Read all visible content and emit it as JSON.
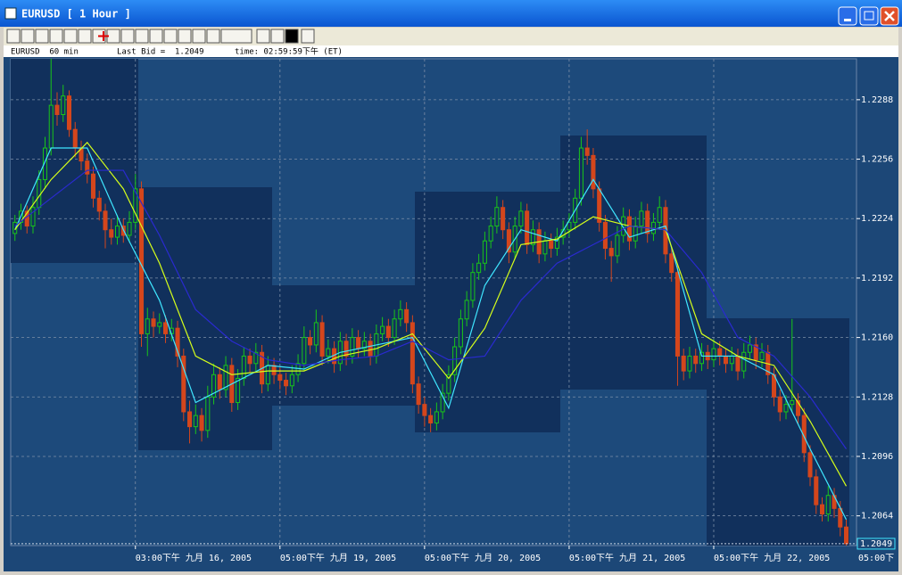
{
  "window": {
    "title": "EURUSD  [ 1 Hour ]"
  },
  "header": {
    "symbol_period": "EURUSD  60 min",
    "last_bid_label": "Last Bid =",
    "time": "time: 02:59:59下午 (ET)"
  },
  "chart_data": {
    "type": "candlestick",
    "last_bid": 1.2049,
    "ylim": [
      1.2048,
      1.231
    ],
    "yticks": [
      1.2064,
      1.2096,
      1.2128,
      {
        "value": 1.216,
        "label": "1.2160"
      },
      1.2192,
      1.2224,
      1.2256,
      1.2288
    ],
    "xlim": [
      -0.7,
      139.7
    ],
    "xticks": [
      {
        "value": 20,
        "label": "03:00下午 九月 16, 2005"
      },
      {
        "value": 44,
        "label": "05:00下午 九月 19, 2005"
      },
      {
        "value": 68,
        "label": "05:00下午 九月 20, 2005"
      },
      {
        "value": 92,
        "label": "05:00下午 九月 21, 2005"
      },
      {
        "value": 116,
        "label": "05:00下午 九月 22, 2005"
      },
      {
        "value": 140,
        "label": "05:00下"
      }
    ],
    "grid": true,
    "up_color": "#19c519",
    "down_color": "#d4461c",
    "candles": [
      [
        1.2216,
        1.2226,
        1.2212,
        1.2222
      ],
      [
        1.2222,
        1.2232,
        1.2218,
        1.2228
      ],
      [
        1.2228,
        1.2231,
        1.2216,
        1.222
      ],
      [
        1.222,
        1.2236,
        1.2216,
        1.223
      ],
      [
        1.223,
        1.225,
        1.2226,
        1.2245
      ],
      [
        1.2245,
        1.2268,
        1.224,
        1.2262
      ],
      [
        1.2262,
        1.231,
        1.2258,
        1.2285
      ],
      [
        1.2285,
        1.2292,
        1.2274,
        1.228
      ],
      [
        1.228,
        1.2296,
        1.2276,
        1.229
      ],
      [
        1.229,
        1.2293,
        1.2268,
        1.2272
      ],
      [
        1.2272,
        1.2276,
        1.2257,
        1.2262
      ],
      [
        1.2262,
        1.2266,
        1.225,
        1.2255
      ],
      [
        1.2255,
        1.2259,
        1.2243,
        1.2248
      ],
      [
        1.2248,
        1.2252,
        1.223,
        1.2235
      ],
      [
        1.2235,
        1.2239,
        1.2223,
        1.2228
      ],
      [
        1.2228,
        1.2232,
        1.2208,
        1.2218
      ],
      [
        1.2218,
        1.2224,
        1.221,
        1.2214
      ],
      [
        1.2214,
        1.2226,
        1.221,
        1.222
      ],
      [
        1.222,
        1.2224,
        1.2211,
        1.2215
      ],
      [
        1.2215,
        1.2228,
        1.2211,
        1.2222
      ],
      [
        1.2222,
        1.2248,
        1.2218,
        1.224
      ],
      [
        1.224,
        1.2244,
        1.2155,
        1.2162
      ],
      [
        1.2162,
        1.2176,
        1.215,
        1.217
      ],
      [
        1.217,
        1.2174,
        1.216,
        1.2166
      ],
      [
        1.2166,
        1.2173,
        1.2162,
        1.2168
      ],
      [
        1.2168,
        1.2172,
        1.2157,
        1.2162
      ],
      [
        1.2162,
        1.217,
        1.2158,
        1.2165
      ],
      [
        1.2165,
        1.2169,
        1.2144,
        1.215
      ],
      [
        1.215,
        1.2154,
        1.2115,
        1.212
      ],
      [
        1.212,
        1.2126,
        1.2103,
        1.2112
      ],
      [
        1.2112,
        1.2124,
        1.2108,
        1.2118
      ],
      [
        1.2118,
        1.2122,
        1.2104,
        1.211
      ],
      [
        1.211,
        1.2134,
        1.2106,
        1.2128
      ],
      [
        1.2128,
        1.2146,
        1.2124,
        1.214
      ],
      [
        1.214,
        1.2144,
        1.2127,
        1.2132
      ],
      [
        1.2132,
        1.215,
        1.2128,
        1.2145
      ],
      [
        1.2145,
        1.2149,
        1.212,
        1.2125
      ],
      [
        1.2125,
        1.2143,
        1.2121,
        1.2138
      ],
      [
        1.2138,
        1.2155,
        1.2134,
        1.215
      ],
      [
        1.215,
        1.2154,
        1.2141,
        1.2146
      ],
      [
        1.2146,
        1.2157,
        1.2142,
        1.2152
      ],
      [
        1.2152,
        1.2156,
        1.213,
        1.2135
      ],
      [
        1.2135,
        1.215,
        1.2131,
        1.2145
      ],
      [
        1.2145,
        1.2149,
        1.2135,
        1.214
      ],
      [
        1.214,
        1.2144,
        1.2132,
        1.2137
      ],
      [
        1.2137,
        1.2141,
        1.2129,
        1.2134
      ],
      [
        1.2134,
        1.2145,
        1.213,
        1.214
      ],
      [
        1.214,
        1.2151,
        1.2136,
        1.2146
      ],
      [
        1.2146,
        1.2166,
        1.2142,
        1.216
      ],
      [
        1.216,
        1.2164,
        1.2151,
        1.2156
      ],
      [
        1.2156,
        1.2175,
        1.2152,
        1.2168
      ],
      [
        1.2168,
        1.2172,
        1.2145,
        1.215
      ],
      [
        1.215,
        1.2159,
        1.2146,
        1.2154
      ],
      [
        1.2154,
        1.2158,
        1.2141,
        1.2146
      ],
      [
        1.2146,
        1.2163,
        1.2142,
        1.2158
      ],
      [
        1.2158,
        1.2162,
        1.2145,
        1.215
      ],
      [
        1.215,
        1.2165,
        1.2146,
        1.216
      ],
      [
        1.216,
        1.2164,
        1.2149,
        1.2154
      ],
      [
        1.2154,
        1.2163,
        1.215,
        1.2158
      ],
      [
        1.2158,
        1.2162,
        1.2145,
        1.215
      ],
      [
        1.215,
        1.2167,
        1.2146,
        1.2162
      ],
      [
        1.2162,
        1.2171,
        1.2158,
        1.2166
      ],
      [
        1.2166,
        1.217,
        1.2155,
        1.216
      ],
      [
        1.216,
        1.2175,
        1.2156,
        1.217
      ],
      [
        1.217,
        1.218,
        1.2166,
        1.2175
      ],
      [
        1.2175,
        1.2179,
        1.2163,
        1.2168
      ],
      [
        1.2168,
        1.2172,
        1.213,
        1.2135
      ],
      [
        1.2135,
        1.2139,
        1.2119,
        1.2124
      ],
      [
        1.2124,
        1.2128,
        1.2112,
        1.2118
      ],
      [
        1.2118,
        1.2122,
        1.2109,
        1.2114
      ],
      [
        1.2114,
        1.2125,
        1.211,
        1.212
      ],
      [
        1.212,
        1.2135,
        1.2116,
        1.213
      ],
      [
        1.213,
        1.2145,
        1.2126,
        1.214
      ],
      [
        1.214,
        1.216,
        1.2136,
        1.2155
      ],
      [
        1.2155,
        1.2175,
        1.2151,
        1.217
      ],
      [
        1.217,
        1.2185,
        1.2166,
        1.218
      ],
      [
        1.218,
        1.22,
        1.2176,
        1.2195
      ],
      [
        1.2195,
        1.2205,
        1.2191,
        1.22
      ],
      [
        1.22,
        1.2217,
        1.2196,
        1.2212
      ],
      [
        1.2212,
        1.2225,
        1.2208,
        1.222
      ],
      [
        1.222,
        1.2236,
        1.2216,
        1.223
      ],
      [
        1.223,
        1.2234,
        1.2213,
        1.2218
      ],
      [
        1.2218,
        1.2222,
        1.22,
        1.2206
      ],
      [
        1.2206,
        1.2225,
        1.2202,
        1.222
      ],
      [
        1.222,
        1.2233,
        1.2216,
        1.2228
      ],
      [
        1.2228,
        1.2232,
        1.2205,
        1.221
      ],
      [
        1.221,
        1.2223,
        1.2206,
        1.2218
      ],
      [
        1.2218,
        1.2222,
        1.22,
        1.2205
      ],
      [
        1.2205,
        1.2217,
        1.2201,
        1.2212
      ],
      [
        1.2212,
        1.2216,
        1.2203,
        1.2208
      ],
      [
        1.2208,
        1.2219,
        1.2204,
        1.2214
      ],
      [
        1.2214,
        1.2223,
        1.221,
        1.2218
      ],
      [
        1.2218,
        1.2227,
        1.2214,
        1.2222
      ],
      [
        1.2222,
        1.224,
        1.2218,
        1.2235
      ],
      [
        1.2235,
        1.2268,
        1.2231,
        1.2262
      ],
      [
        1.2262,
        1.2272,
        1.2253,
        1.2258
      ],
      [
        1.2258,
        1.2262,
        1.2235,
        1.224
      ],
      [
        1.224,
        1.2244,
        1.2217,
        1.2222
      ],
      [
        1.2222,
        1.2226,
        1.2202,
        1.2208
      ],
      [
        1.2208,
        1.2212,
        1.219,
        1.2204
      ],
      [
        1.2204,
        1.222,
        1.22,
        1.2215
      ],
      [
        1.2215,
        1.223,
        1.2211,
        1.2225
      ],
      [
        1.2225,
        1.2229,
        1.2207,
        1.2212
      ],
      [
        1.2212,
        1.2225,
        1.2208,
        1.222
      ],
      [
        1.222,
        1.2233,
        1.2216,
        1.2228
      ],
      [
        1.2228,
        1.2232,
        1.2211,
        1.2216
      ],
      [
        1.2216,
        1.2227,
        1.2212,
        1.2222
      ],
      [
        1.2222,
        1.2236,
        1.2218,
        1.223
      ],
      [
        1.223,
        1.2234,
        1.22,
        1.2205
      ],
      [
        1.2205,
        1.2209,
        1.219,
        1.2195
      ],
      [
        1.2195,
        1.2199,
        1.2134,
        1.215
      ],
      [
        1.215,
        1.2154,
        1.2137,
        1.2142
      ],
      [
        1.2142,
        1.2155,
        1.2138,
        1.215
      ],
      [
        1.215,
        1.2154,
        1.2141,
        1.2146
      ],
      [
        1.2146,
        1.2157,
        1.2142,
        1.2152
      ],
      [
        1.2152,
        1.2156,
        1.2143,
        1.2148
      ],
      [
        1.2148,
        1.2159,
        1.2144,
        1.2154
      ],
      [
        1.2154,
        1.2158,
        1.2145,
        1.215
      ],
      [
        1.215,
        1.2154,
        1.2141,
        1.2146
      ],
      [
        1.2146,
        1.2155,
        1.2142,
        1.215
      ],
      [
        1.215,
        1.2154,
        1.2137,
        1.2142
      ],
      [
        1.2142,
        1.2157,
        1.2138,
        1.2152
      ],
      [
        1.2152,
        1.2161,
        1.2148,
        1.2156
      ],
      [
        1.2156,
        1.216,
        1.2143,
        1.2148
      ],
      [
        1.2148,
        1.2157,
        1.2144,
        1.2152
      ],
      [
        1.2152,
        1.2156,
        1.2135,
        1.214
      ],
      [
        1.214,
        1.2144,
        1.2123,
        1.2128
      ],
      [
        1.2128,
        1.2132,
        1.2115,
        1.212
      ],
      [
        1.212,
        1.2129,
        1.2116,
        1.2124
      ],
      [
        1.2124,
        1.217,
        1.212,
        1.2126
      ],
      [
        1.2126,
        1.213,
        1.2113,
        1.2118
      ],
      [
        1.2118,
        1.2122,
        1.2093,
        1.2098
      ],
      [
        1.2098,
        1.2102,
        1.208,
        1.2085
      ],
      [
        1.2085,
        1.2089,
        1.2065,
        1.207
      ],
      [
        1.207,
        1.2074,
        1.2061,
        1.2065
      ],
      [
        1.2065,
        1.208,
        1.2061,
        1.2075
      ],
      [
        1.2075,
        1.2079,
        1.2063,
        1.2068
      ],
      [
        1.2068,
        1.2072,
        1.2053,
        1.2058
      ],
      [
        1.2058,
        1.2062,
        1.2048,
        1.2049
      ]
    ],
    "moving_averages": [
      {
        "color": "#3fe6ff",
        "x": [
          0,
          6,
          12,
          18,
          24,
          30,
          36,
          42,
          48,
          54,
          60,
          66,
          72,
          78,
          84,
          90,
          96,
          102,
          108,
          114,
          120,
          126,
          132,
          138
        ],
        "values": [
          1.2218,
          1.2262,
          1.2262,
          1.2218,
          1.218,
          1.2125,
          1.2135,
          1.2145,
          1.2143,
          1.2152,
          1.2156,
          1.216,
          1.2122,
          1.2188,
          1.2218,
          1.2212,
          1.2245,
          1.2214,
          1.222,
          1.215,
          1.215,
          1.214,
          1.21,
          1.2062
        ]
      },
      {
        "color": "#d6ff1a",
        "x": [
          0,
          6,
          12,
          18,
          24,
          30,
          36,
          42,
          48,
          54,
          60,
          66,
          72,
          78,
          84,
          90,
          96,
          102,
          108,
          114,
          120,
          126,
          132,
          138
        ],
        "values": [
          1.2218,
          1.2245,
          1.2265,
          1.224,
          1.22,
          1.215,
          1.214,
          1.2142,
          1.2142,
          1.215,
          1.2154,
          1.2162,
          1.2138,
          1.2165,
          1.221,
          1.2213,
          1.2225,
          1.222,
          1.2218,
          1.2162,
          1.215,
          1.2145,
          1.2115,
          1.208
        ]
      },
      {
        "color": "#2a2ad0",
        "x": [
          0,
          6,
          12,
          18,
          24,
          30,
          36,
          42,
          48,
          54,
          60,
          66,
          72,
          78,
          84,
          90,
          96,
          102,
          108,
          114,
          120,
          126,
          132,
          138
        ],
        "values": [
          1.222,
          1.2235,
          1.225,
          1.225,
          1.2215,
          1.2175,
          1.2158,
          1.2148,
          1.2145,
          1.2148,
          1.215,
          1.2158,
          1.2148,
          1.215,
          1.218,
          1.22,
          1.221,
          1.222,
          1.2218,
          1.2195,
          1.216,
          1.215,
          1.2128,
          1.21
        ]
      }
    ]
  }
}
